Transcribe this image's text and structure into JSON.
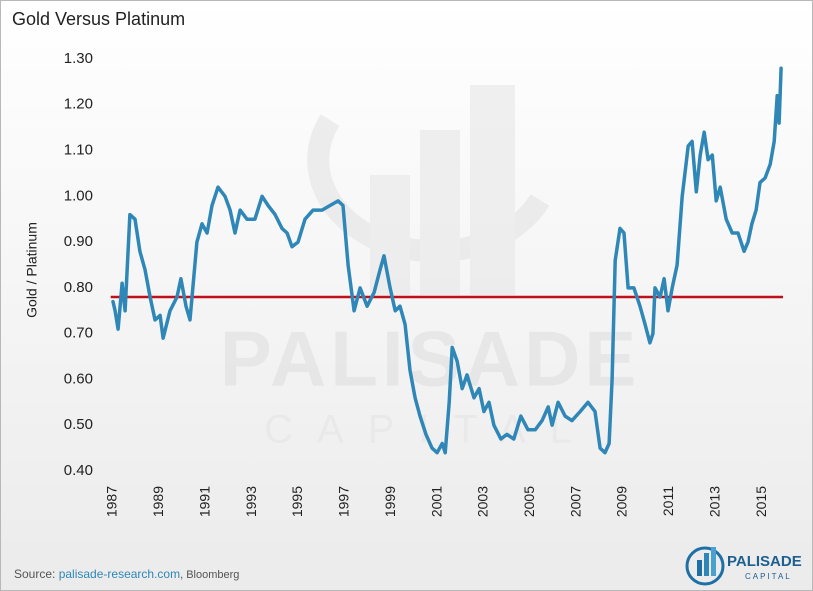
{
  "chart_data": {
    "type": "line",
    "title": "Gold Versus Platinum",
    "y_label": "Gold / Platinum",
    "source_prefix": "Source: ",
    "source_link": "palisade-research.com",
    "source_suffix": ", Bloomberg",
    "watermark": [
      "PALISADE",
      "CAPITAL"
    ],
    "logo": [
      "PALISADE",
      "CAPITAL"
    ],
    "x": [
      1987.0,
      1987.09,
      1987.22,
      1987.39,
      1987.52,
      1987.73,
      1987.95,
      1988.16,
      1988.38,
      1988.6,
      1988.81,
      1989.03,
      1989.16,
      1989.46,
      1989.76,
      1989.93,
      1990.15,
      1990.32,
      1990.62,
      1990.84,
      1991.06,
      1991.27,
      1991.53,
      1991.83,
      1992.05,
      1992.26,
      1992.48,
      1992.78,
      1993.12,
      1993.43,
      1993.69,
      1993.99,
      1994.29,
      1994.51,
      1994.72,
      1994.98,
      1995.28,
      1995.63,
      1996.02,
      1996.36,
      1996.71,
      1996.92,
      1997.14,
      1997.4,
      1997.66,
      1997.96,
      1998.26,
      1998.52,
      1998.69,
      1998.95,
      1999.17,
      1999.38,
      1999.6,
      1999.81,
      2000.03,
      2000.24,
      2000.5,
      2000.76,
      2000.98,
      2001.2,
      2001.33,
      2001.5,
      2001.63,
      2001.84,
      2002.06,
      2002.27,
      2002.57,
      2002.79,
      2003.0,
      2003.22,
      2003.43,
      2003.73,
      2003.99,
      2004.29,
      2004.59,
      2004.9,
      2005.21,
      2005.51,
      2005.77,
      2005.94,
      2006.2,
      2006.5,
      2006.8,
      2007.15,
      2007.49,
      2007.79,
      2008.01,
      2008.22,
      2008.4,
      2008.53,
      2008.66,
      2008.87,
      2009.04,
      2009.22,
      2009.47,
      2009.73,
      2009.95,
      2010.16,
      2010.29,
      2010.38,
      2010.6,
      2010.77,
      2010.94,
      2011.12,
      2011.33,
      2011.55,
      2011.81,
      2011.98,
      2012.16,
      2012.33,
      2012.5,
      2012.67,
      2012.85,
      2013.02,
      2013.19,
      2013.45,
      2013.71,
      2013.96,
      2014.22,
      2014.39,
      2014.56,
      2014.74,
      2014.91,
      2015.13,
      2015.35,
      2015.52,
      2015.65,
      2015.73,
      2015.82
    ],
    "series": [
      {
        "name": "Gold / Platinum",
        "color": "#2f87b7",
        "values": [
          0.77,
          0.75,
          0.71,
          0.81,
          0.75,
          0.96,
          0.95,
          0.88,
          0.84,
          0.78,
          0.73,
          0.74,
          0.69,
          0.75,
          0.78,
          0.82,
          0.76,
          0.73,
          0.9,
          0.94,
          0.92,
          0.98,
          1.02,
          1.0,
          0.97,
          0.92,
          0.97,
          0.95,
          0.95,
          1.0,
          0.98,
          0.96,
          0.93,
          0.92,
          0.89,
          0.9,
          0.95,
          0.97,
          0.97,
          0.98,
          0.99,
          0.98,
          0.85,
          0.75,
          0.8,
          0.76,
          0.79,
          0.84,
          0.87,
          0.8,
          0.75,
          0.76,
          0.72,
          0.62,
          0.56,
          0.52,
          0.48,
          0.45,
          0.44,
          0.46,
          0.44,
          0.55,
          0.67,
          0.64,
          0.58,
          0.61,
          0.56,
          0.58,
          0.53,
          0.55,
          0.5,
          0.47,
          0.48,
          0.47,
          0.52,
          0.49,
          0.49,
          0.51,
          0.54,
          0.5,
          0.55,
          0.52,
          0.51,
          0.53,
          0.55,
          0.53,
          0.45,
          0.44,
          0.46,
          0.6,
          0.86,
          0.93,
          0.92,
          0.8,
          0.8,
          0.76,
          0.72,
          0.68,
          0.7,
          0.8,
          0.78,
          0.82,
          0.75,
          0.8,
          0.85,
          1.0,
          1.11,
          1.12,
          1.01,
          1.09,
          1.14,
          1.08,
          1.09,
          0.99,
          1.02,
          0.95,
          0.92,
          0.92,
          0.88,
          0.9,
          0.94,
          0.97,
          1.03,
          1.04,
          1.07,
          1.12,
          1.22,
          1.16,
          1.28
        ]
      }
    ],
    "reference_line": {
      "value": 0.78,
      "color": "#c0101a"
    },
    "xlim": [
      1986.9,
      2015.9
    ],
    "xticks": [
      1987,
      1989,
      1991,
      1993,
      1995,
      1997,
      1999,
      2001,
      2003,
      2005,
      2007,
      2009,
      2011,
      2013,
      2015
    ],
    "ylim": [
      0.4,
      1.3
    ],
    "yticks": [
      {
        "value": 0.4,
        "label": "0.40"
      },
      {
        "value": 0.5,
        "label": "0.50"
      },
      {
        "value": 0.6,
        "label": "0.60"
      },
      {
        "value": 0.7,
        "label": "0.70"
      },
      {
        "value": 0.8,
        "label": "0.80"
      },
      {
        "value": 0.9,
        "label": "0.90"
      },
      {
        "value": 1.0,
        "label": "1.00"
      },
      {
        "value": 1.1,
        "label": "1.10"
      },
      {
        "value": 1.2,
        "label": "1.20"
      },
      {
        "value": 1.3,
        "label": "1.30"
      }
    ],
    "grid": false
  }
}
